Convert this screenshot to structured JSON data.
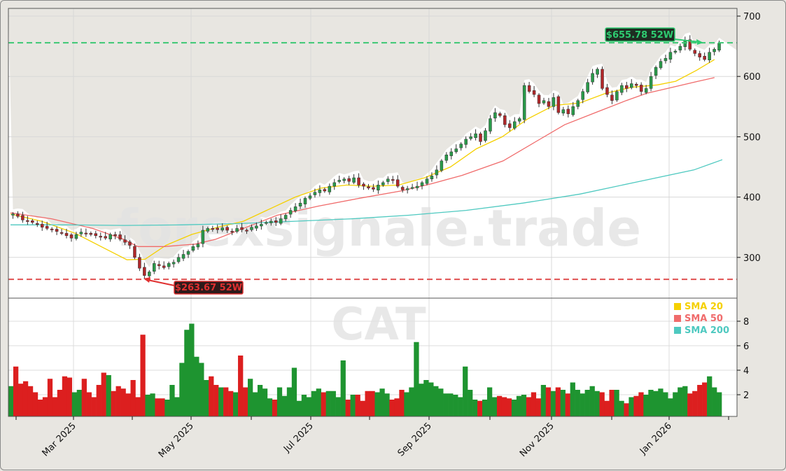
{
  "chart_data": {
    "type": "candlestick",
    "ticker": "CAT",
    "watermark": "forexsignale.trade",
    "title": "",
    "xlabel": "",
    "ylabel": "",
    "price_axis": {
      "ticks": [
        300,
        400,
        500,
        600,
        700
      ],
      "range": [
        240,
        710
      ],
      "position": "right"
    },
    "volume_axis": {
      "ticks": [
        2,
        4,
        6,
        8
      ],
      "range": [
        0,
        8.7
      ],
      "unit": "1e7",
      "position": "right"
    },
    "x_ticks": [
      "Mar 2025",
      "May 2025",
      "Jul 2025",
      "Sep 2025",
      "Nov 2025",
      "Jan 2026"
    ],
    "x_range": [
      "2025-02-03",
      "2026-01-30"
    ],
    "annotations": {
      "high_52w": {
        "label": "$655.78 52W",
        "value": 655.78,
        "color": "#2ecc71"
      },
      "low_52w": {
        "label": "$263.67 52W",
        "value": 263.67,
        "color": "#e03030"
      }
    },
    "legend": [
      {
        "label": "SMA 20",
        "color": "#f5d000"
      },
      {
        "label": "SMA 50",
        "color": "#f06b6b"
      },
      {
        "label": "SMA 200",
        "color": "#4ec9c0"
      }
    ],
    "closes": [
      372,
      368,
      362,
      360,
      358,
      355,
      350,
      348,
      346,
      343,
      340,
      336,
      332,
      338,
      342,
      340,
      338,
      336,
      334,
      332,
      338,
      336,
      330,
      325,
      320,
      300,
      282,
      270,
      276,
      290,
      286,
      283,
      290,
      292,
      300,
      305,
      310,
      318,
      322,
      345,
      348,
      347,
      346,
      349,
      345,
      343,
      348,
      346,
      345,
      350,
      352,
      355,
      358,
      360,
      358,
      364,
      370,
      378,
      384,
      390,
      398,
      402,
      408,
      412,
      410,
      418,
      424,
      428,
      430,
      426,
      432,
      420,
      418,
      415,
      413,
      420,
      424,
      430,
      428,
      418,
      412,
      414,
      416,
      418,
      424,
      430,
      435,
      445,
      460,
      470,
      475,
      480,
      488,
      496,
      500,
      505,
      492,
      510,
      530,
      540,
      535,
      520,
      515,
      525,
      530,
      585,
      575,
      570,
      555,
      560,
      550,
      565,
      540,
      545,
      538,
      550,
      560,
      575,
      590,
      605,
      612,
      580,
      570,
      560,
      575,
      585,
      580,
      588,
      585,
      575,
      580,
      600,
      615,
      625,
      630,
      640,
      642,
      650,
      660,
      645,
      638,
      632,
      628,
      640,
      645,
      655
    ],
    "volumes": [
      2.7,
      4.3,
      2.9,
      3.1,
      2.7,
      2.2,
      1.6,
      1.8,
      3.3,
      1.8,
      2.4,
      3.5,
      3.4,
      2.2,
      2.4,
      3.3,
      2.2,
      1.8,
      2.8,
      3.8,
      3.6,
      2.3,
      2.7,
      2.5,
      2.1,
      3.2,
      1.8,
      6.9,
      2.0,
      2.1,
      1.7,
      1.7,
      1.6,
      2.8,
      1.8,
      4.6,
      7.3,
      7.8,
      5.1,
      4.6,
      3.2,
      3.5,
      2.8,
      2.6,
      2.6,
      2.3,
      2.2,
      5.2,
      2.6,
      3.3,
      2.2,
      2.8,
      2.5,
      1.7,
      1.6,
      2.6,
      1.9,
      2.6,
      4.2,
      1.5,
      2.0,
      1.8,
      2.3,
      2.5,
      2.2,
      2.3,
      2.3,
      1.8,
      4.8,
      1.6,
      2.0,
      2.0,
      1.5,
      2.3,
      2.3,
      2.2,
      2.5,
      2.1,
      1.6,
      1.7,
      2.4,
      2.2,
      2.6,
      6.3,
      2.9,
      3.2,
      3.0,
      2.7,
      2.5,
      2.1,
      2.1,
      2.0,
      1.8,
      4.3,
      2.4,
      1.6,
      1.5,
      1.6,
      2.6,
      1.8,
      1.9,
      1.8,
      1.7,
      1.6,
      1.9,
      2.0,
      1.8,
      2.2,
      1.7,
      2.8,
      2.6,
      2.3,
      2.6,
      2.4,
      2.1,
      3.0,
      2.4,
      2.1,
      2.4,
      2.7,
      2.3,
      2.2,
      1.5,
      2.4,
      2.4,
      1.5,
      1.3,
      1.8,
      1.9,
      2.2,
      2.0,
      2.4,
      2.3,
      2.5,
      2.2,
      1.7,
      2.2,
      2.6,
      2.7,
      2.1,
      2.3,
      2.8,
      3.0,
      3.5,
      2.6,
      2.2
    ],
    "sma20": [
      [
        0,
        372
      ],
      [
        12,
        360
      ],
      [
        25,
        340
      ],
      [
        35,
        318
      ],
      [
        45,
        296
      ],
      [
        52,
        297
      ],
      [
        60,
        320
      ],
      [
        70,
        338
      ],
      [
        80,
        350
      ],
      [
        90,
        360
      ],
      [
        100,
        380
      ],
      [
        110,
        400
      ],
      [
        120,
        415
      ],
      [
        130,
        420
      ],
      [
        140,
        418
      ],
      [
        150,
        420
      ],
      [
        160,
        432
      ],
      [
        170,
        450
      ],
      [
        180,
        480
      ],
      [
        190,
        500
      ],
      [
        200,
        530
      ],
      [
        210,
        552
      ],
      [
        220,
        556
      ],
      [
        230,
        572
      ],
      [
        240,
        582
      ],
      [
        250,
        586
      ],
      [
        257,
        592
      ],
      [
        265,
        610
      ],
      [
        272,
        628
      ]
    ],
    "sma50": [
      [
        0,
        374
      ],
      [
        20,
        364
      ],
      [
        40,
        348
      ],
      [
        55,
        330
      ],
      [
        62,
        318
      ],
      [
        75,
        318
      ],
      [
        90,
        322
      ],
      [
        100,
        330
      ],
      [
        115,
        350
      ],
      [
        130,
        370
      ],
      [
        150,
        385
      ],
      [
        170,
        398
      ],
      [
        190,
        410
      ],
      [
        205,
        422
      ],
      [
        220,
        436
      ],
      [
        240,
        460
      ],
      [
        255,
        490
      ],
      [
        270,
        520
      ],
      [
        285,
        540
      ],
      [
        300,
        560
      ],
      [
        310,
        572
      ],
      [
        325,
        584
      ],
      [
        335,
        592
      ],
      [
        343,
        598
      ]
    ]
  },
  "sma200_points": [
    [
      0,
      354
    ],
    [
      40,
      354
    ],
    [
      80,
      353
    ],
    [
      120,
      354
    ],
    [
      160,
      356
    ],
    [
      200,
      360
    ],
    [
      240,
      364
    ],
    [
      280,
      370
    ],
    [
      320,
      378
    ],
    [
      360,
      390
    ],
    [
      400,
      405
    ],
    [
      440,
      425
    ],
    [
      480,
      445
    ],
    [
      500,
      462
    ]
  ]
}
